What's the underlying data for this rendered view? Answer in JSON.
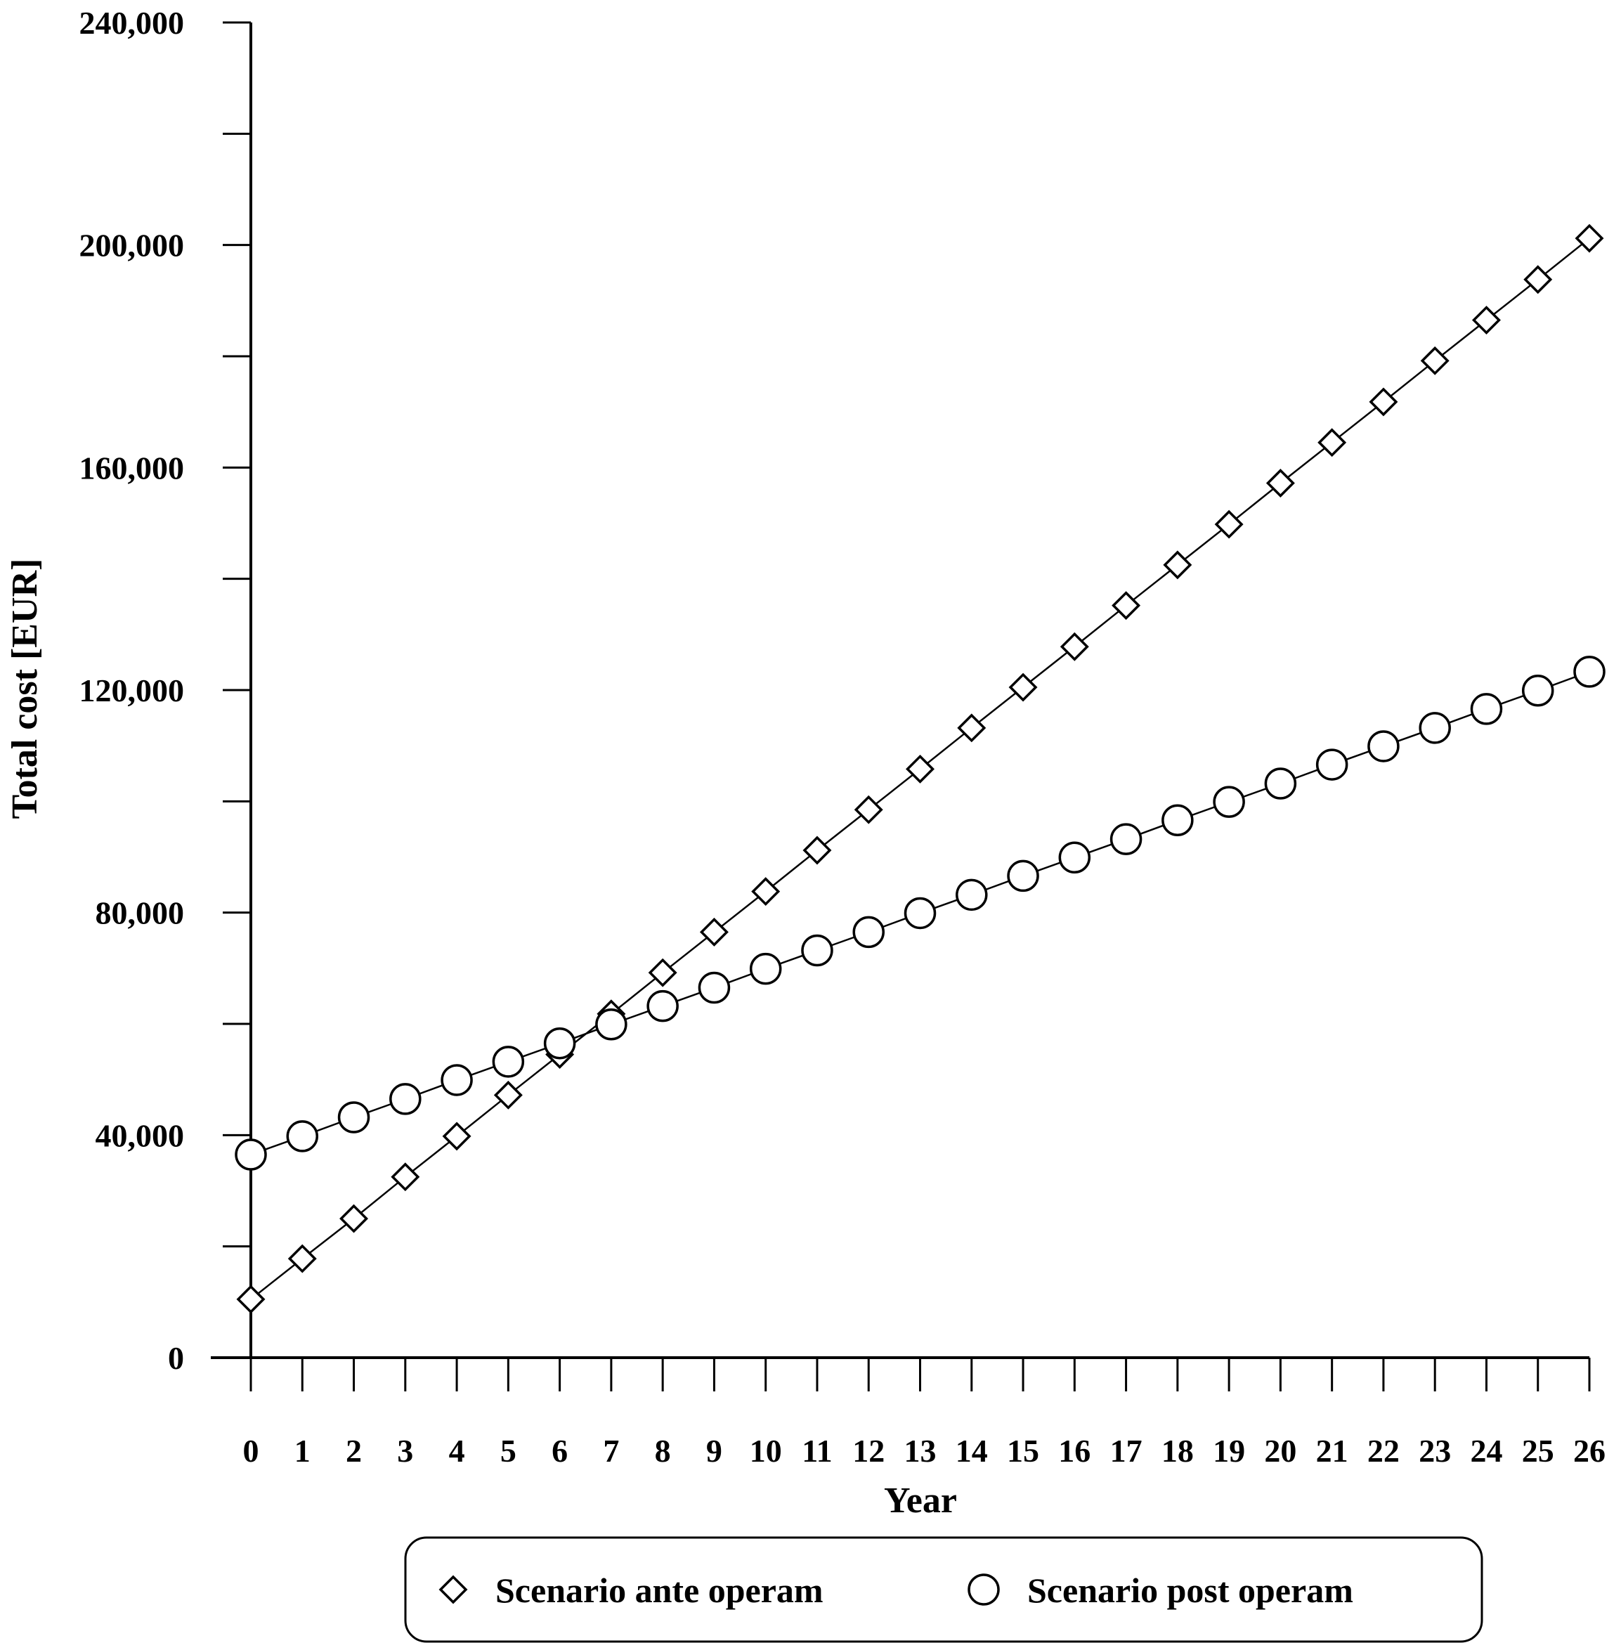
{
  "chart_data": {
    "type": "line",
    "title": "",
    "xlabel": "Year",
    "ylabel": "Total cost [EUR]",
    "x": [
      0,
      1,
      2,
      3,
      4,
      5,
      6,
      7,
      8,
      9,
      10,
      11,
      12,
      13,
      14,
      15,
      16,
      17,
      18,
      19,
      20,
      21,
      22,
      23,
      24,
      25,
      26
    ],
    "x_tick_labels": [
      "0",
      "1",
      "2",
      "3",
      "4",
      "5",
      "6",
      "7",
      "8",
      "9",
      "10",
      "11",
      "12",
      "13",
      "14",
      "15",
      "16",
      "17",
      "18",
      "19",
      "20",
      "21",
      "22",
      "23",
      "24",
      "25",
      "26"
    ],
    "ylim": [
      0,
      240000
    ],
    "y_ticks": [
      0,
      40000,
      80000,
      120000,
      160000,
      200000,
      240000
    ],
    "y_tick_labels": [
      "0",
      "40,000",
      "80,000",
      "120,000",
      "160,000",
      "200,000",
      "240,000"
    ],
    "y_minor_tick_step": 20000,
    "grid": false,
    "legend_position": "bottom",
    "series": [
      {
        "name": "Scenario ante operam",
        "marker": "diamond",
        "values": [
          10500,
          17800,
          25000,
          32500,
          39800,
          47200,
          54500,
          61800,
          69200,
          76500,
          83800,
          91200,
          98500,
          105800,
          113200,
          120500,
          127800,
          135200,
          142500,
          149800,
          157200,
          164500,
          171800,
          179200,
          186500,
          193800,
          201200
        ]
      },
      {
        "name": "Scenario post operam",
        "marker": "circle",
        "values": [
          36500,
          39800,
          43200,
          46500,
          49900,
          53200,
          56500,
          59900,
          63200,
          66500,
          69900,
          73200,
          76500,
          79900,
          83200,
          86600,
          89900,
          93200,
          96600,
          99900,
          103200,
          106600,
          109900,
          113200,
          116600,
          119900,
          123300
        ]
      }
    ]
  }
}
